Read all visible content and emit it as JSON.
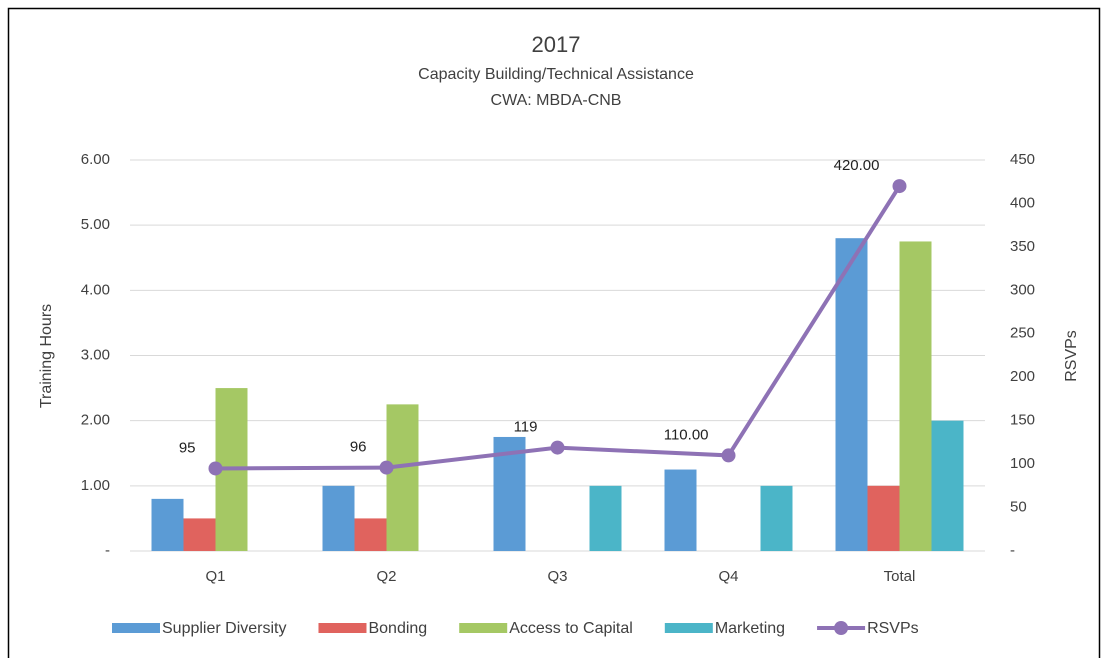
{
  "chart_data": {
    "type": "bar",
    "title": "2017",
    "subtitle": [
      "Capacity Building/Technical Assistance",
      "CWA: MBDA-CNB"
    ],
    "y_label": "Training Hours",
    "y2_label": "RSVPs",
    "categories": [
      "Q1",
      "Q2",
      "Q3",
      "Q4",
      "Total"
    ],
    "series": [
      {
        "name": "Supplier Diversity",
        "color": "#5b9bd5",
        "values": [
          0.8,
          1.0,
          1.75,
          1.25,
          4.8
        ],
        "value_labels": [
          "0.80",
          "1.00",
          "1.75",
          "1.25",
          "4.80"
        ]
      },
      {
        "name": "Bonding",
        "color": "#e0635e",
        "values": [
          0.5,
          0.5,
          null,
          null,
          1.0
        ],
        "value_labels": [
          "0.50",
          "0.50",
          null,
          null,
          "1.00"
        ]
      },
      {
        "name": "Access to Capital",
        "color": "#a5c864",
        "values": [
          2.5,
          2.25,
          null,
          null,
          4.75
        ],
        "value_labels": [
          "2.50",
          "2.25",
          null,
          null,
          "4.75"
        ]
      },
      {
        "name": "Marketing",
        "color": "#4bb5c8",
        "values": [
          null,
          null,
          1.0,
          1.0,
          2.0
        ],
        "value_labels": [
          null,
          null,
          "1.00",
          "1.00",
          "2.00"
        ]
      },
      {
        "name": "RSVPs",
        "type": "line",
        "axis": "y2",
        "color": "#8e72b5",
        "values": [
          95,
          96,
          119,
          110,
          420
        ],
        "value_labels": [
          "95",
          "96",
          "119",
          "110.00",
          "420.00"
        ]
      }
    ],
    "ylim": [
      0,
      6
    ],
    "yticks": [
      {
        "value": 0,
        "label": "-"
      },
      {
        "value": 1,
        "label": "1.00"
      },
      {
        "value": 2,
        "label": "2.00"
      },
      {
        "value": 3,
        "label": "3.00"
      },
      {
        "value": 4,
        "label": "4.00"
      },
      {
        "value": 5,
        "label": "5.00"
      },
      {
        "value": 6,
        "label": "6.00"
      }
    ],
    "y2lim": [
      0,
      450
    ],
    "y2ticks": [
      {
        "value": 0,
        "label": "-"
      },
      50,
      100,
      150,
      200,
      250,
      300,
      350,
      400,
      450
    ],
    "grid": true,
    "legend": "bottom"
  }
}
